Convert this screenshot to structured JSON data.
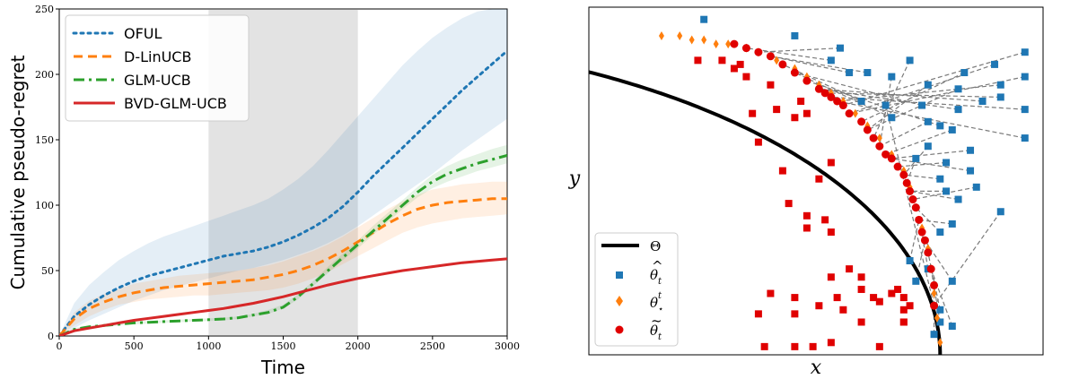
{
  "chart_data": [
    {
      "type": "line",
      "title": "",
      "xlabel": "Time",
      "ylabel": "Cumulative pseudo-regret",
      "xlim": [
        0,
        3000
      ],
      "ylim": [
        0,
        250
      ],
      "xticks": [
        "0",
        "500",
        "1000",
        "1500",
        "2000",
        "2500",
        "3000"
      ],
      "yticks": [
        "0",
        "50",
        "100",
        "150",
        "200",
        "250"
      ],
      "shaded_region": [
        1000,
        2000
      ],
      "legend_position": "top-left",
      "x": [
        0,
        100,
        200,
        300,
        400,
        500,
        600,
        700,
        800,
        900,
        1000,
        1100,
        1200,
        1300,
        1400,
        1500,
        1600,
        1700,
        1800,
        1900,
        2000,
        2100,
        2200,
        2300,
        2400,
        2500,
        2600,
        2700,
        2800,
        2900,
        3000
      ],
      "series": [
        {
          "name": "OFUL",
          "color": "#1f77b4",
          "style": "dotted",
          "values": [
            0,
            15,
            24,
            31,
            37,
            42,
            46,
            49,
            52,
            55,
            58,
            61,
            63,
            65,
            68,
            72,
            77,
            83,
            90,
            99,
            110,
            122,
            133,
            144,
            155,
            166,
            177,
            188,
            198,
            208,
            218
          ],
          "lower": [
            0,
            6,
            12,
            17,
            22,
            27,
            31,
            35,
            38,
            41,
            44,
            47,
            50,
            52,
            55,
            58,
            62,
            66,
            71,
            77,
            84,
            92,
            100,
            108,
            116,
            124,
            133,
            142,
            150,
            158,
            166
          ],
          "upper": [
            0,
            25,
            39,
            49,
            58,
            65,
            71,
            76,
            80,
            84,
            88,
            92,
            96,
            100,
            105,
            112,
            120,
            130,
            142,
            155,
            168,
            181,
            194,
            207,
            218,
            228,
            236,
            243,
            248,
            250,
            250
          ]
        },
        {
          "name": "D-LinUCB",
          "color": "#ff7f0e",
          "style": "dashed",
          "values": [
            0,
            13,
            21,
            26,
            30,
            33,
            35,
            37,
            38,
            39,
            40,
            41,
            42,
            43,
            45,
            47,
            50,
            54,
            59,
            65,
            72,
            79,
            86,
            92,
            97,
            100,
            102,
            103,
            104,
            105,
            105
          ],
          "lower": [
            0,
            8,
            15,
            20,
            24,
            26,
            28,
            29,
            30,
            31,
            31,
            32,
            33,
            34,
            35,
            37,
            40,
            44,
            49,
            55,
            61,
            67,
            73,
            79,
            83,
            86,
            88,
            90,
            91,
            92,
            93
          ],
          "upper": [
            0,
            18,
            27,
            32,
            36,
            40,
            42,
            44,
            46,
            47,
            48,
            49,
            50,
            52,
            54,
            57,
            61,
            65,
            70,
            76,
            83,
            90,
            97,
            103,
            108,
            112,
            114,
            116,
            117,
            118,
            118
          ]
        },
        {
          "name": "GLM-UCB",
          "color": "#2ca02c",
          "style": "dashdot",
          "values": [
            0,
            5,
            7,
            8,
            9,
            10,
            10.5,
            11,
            11.5,
            12,
            12.5,
            13,
            14,
            16,
            18,
            22,
            30,
            40,
            50,
            60,
            70,
            80,
            90,
            100,
            110,
            118,
            124,
            128,
            132,
            135,
            138
          ],
          "lower": [
            0,
            4,
            6,
            7,
            8,
            9,
            9.5,
            10,
            10.5,
            11,
            11.5,
            12,
            13,
            15,
            17,
            21,
            28,
            38,
            48,
            58,
            67,
            77,
            87,
            97,
            106,
            113,
            118,
            122,
            126,
            129,
            132
          ],
          "upper": [
            0,
            6,
            8,
            9,
            10,
            11,
            11.5,
            12,
            12.5,
            13,
            13.5,
            14,
            15,
            17,
            20,
            24,
            32,
            42,
            53,
            63,
            73,
            84,
            94,
            104,
            114,
            123,
            130,
            135,
            139,
            143,
            146
          ]
        },
        {
          "name": "BVD-GLM-UCB",
          "color": "#d62728",
          "style": "solid",
          "values": [
            0,
            4,
            6,
            8,
            10,
            12,
            13.5,
            15,
            16.5,
            18,
            19.5,
            21,
            23,
            25,
            27.5,
            30,
            33,
            36,
            39,
            41.5,
            44,
            46,
            48,
            50,
            51.5,
            53,
            54.5,
            56,
            57,
            58,
            59
          ],
          "lower": [
            0,
            3,
            5,
            7,
            9,
            11,
            12.5,
            14,
            15.5,
            17,
            18.5,
            20,
            22,
            24,
            26.5,
            29,
            32,
            35,
            38,
            40.5,
            43,
            45,
            47,
            49,
            50.5,
            52,
            53.5,
            55,
            56,
            57,
            58
          ],
          "upper": [
            0,
            5,
            7,
            9,
            11,
            13,
            14.5,
            16,
            17.5,
            19,
            20.5,
            22,
            24,
            26,
            28.5,
            31,
            34,
            37,
            40,
            42.5,
            45,
            47,
            49,
            51,
            52.5,
            54,
            55.5,
            57,
            58,
            59,
            60
          ]
        }
      ]
    },
    {
      "type": "scatter",
      "title": "",
      "xlabel": "x",
      "ylabel": "y",
      "xlim": [
        0.5,
        1.25
      ],
      "ylim": [
        0,
        0.85
      ],
      "ticks": "none",
      "legend_position": "bottom-left",
      "arc": {
        "name": "Θ",
        "color": "#000000",
        "center": [
          0,
          0
        ],
        "radius": 1.0,
        "theta_start_deg": 90,
        "theta_end_deg": 0
      },
      "series": [
        {
          "name": "θ̂_t",
          "marker": "square",
          "color": "#1f77b4",
          "points": [
            [
              0.69,
              0.82
            ],
            [
              0.84,
              0.78
            ],
            [
              0.9,
              0.72
            ],
            [
              0.915,
              0.75
            ],
            [
              0.93,
              0.69
            ],
            [
              0.96,
              0.69
            ],
            [
              0.95,
              0.62
            ],
            [
              1.0,
              0.58
            ],
            [
              1.05,
              0.61
            ],
            [
              1.08,
              0.56
            ],
            [
              1.11,
              0.6
            ],
            [
              1.15,
              0.62
            ],
            [
              1.18,
              0.63
            ],
            [
              1.22,
              0.6
            ],
            [
              1.22,
              0.53
            ],
            [
              1.18,
              0.66
            ],
            [
              1.22,
              0.74
            ],
            [
              1.22,
              0.68
            ],
            [
              1.17,
              0.71
            ],
            [
              1.12,
              0.69
            ],
            [
              1.11,
              0.65
            ],
            [
              1.06,
              0.66
            ],
            [
              1.03,
              0.72
            ],
            [
              1.0,
              0.68
            ],
            [
              1.06,
              0.57
            ],
            [
              1.1,
              0.55
            ],
            [
              1.13,
              0.5
            ],
            [
              1.13,
              0.45
            ],
            [
              1.09,
              0.47
            ],
            [
              1.08,
              0.43
            ],
            [
              1.06,
              0.51
            ],
            [
              1.04,
              0.48
            ],
            [
              1.09,
              0.4
            ],
            [
              1.11,
              0.38
            ],
            [
              1.14,
              0.41
            ],
            [
              1.08,
              0.3
            ],
            [
              1.1,
              0.32
            ],
            [
              1.03,
              0.23
            ],
            [
              1.06,
              0.21
            ],
            [
              1.04,
              0.18
            ],
            [
              1.1,
              0.18
            ],
            [
              1.08,
              0.11
            ],
            [
              1.08,
              0.08
            ],
            [
              1.1,
              0.07
            ],
            [
              1.07,
              0.05
            ],
            [
              1.18,
              0.35
            ],
            [
              0.99,
              0.61
            ]
          ]
        },
        {
          "name": "θ⋆^t",
          "marker": "diamond",
          "color": "#ff7f0e",
          "points": [
            [
              0.62,
              0.78
            ],
            [
              0.65,
              0.78
            ],
            [
              0.67,
              0.77
            ],
            [
              0.69,
              0.77
            ],
            [
              0.71,
              0.76
            ],
            [
              0.73,
              0.76
            ],
            [
              0.76,
              0.75
            ],
            [
              0.78,
              0.74
            ],
            [
              0.81,
              0.72
            ],
            [
              0.84,
              0.7
            ],
            [
              0.86,
              0.68
            ],
            [
              0.88,
              0.66
            ],
            [
              0.9,
              0.64
            ],
            [
              0.92,
              0.62
            ],
            [
              0.94,
              0.59
            ],
            [
              0.96,
              0.56
            ],
            [
              0.98,
              0.53
            ],
            [
              1.0,
              0.49
            ],
            [
              1.02,
              0.45
            ],
            [
              1.03,
              0.41
            ],
            [
              1.04,
              0.36
            ],
            [
              1.05,
              0.31
            ],
            [
              1.06,
              0.26
            ],
            [
              1.065,
              0.21
            ],
            [
              1.07,
              0.15
            ],
            [
              1.075,
              0.09
            ],
            [
              1.08,
              0.03
            ]
          ]
        },
        {
          "name": "θ̃_t",
          "marker": "circle",
          "color": "#e00000",
          "points": [
            [
              0.74,
              0.76
            ],
            [
              0.76,
              0.75
            ],
            [
              0.78,
              0.74
            ],
            [
              0.8,
              0.73
            ],
            [
              0.82,
              0.71
            ],
            [
              0.84,
              0.69
            ],
            [
              0.86,
              0.67
            ],
            [
              0.88,
              0.65
            ],
            [
              0.89,
              0.64
            ],
            [
              0.9,
              0.63
            ],
            [
              0.91,
              0.62
            ],
            [
              0.92,
              0.61
            ],
            [
              0.93,
              0.59
            ],
            [
              0.95,
              0.57
            ],
            [
              0.96,
              0.55
            ],
            [
              0.97,
              0.53
            ],
            [
              0.98,
              0.51
            ],
            [
              0.99,
              0.49
            ],
            [
              1.0,
              0.48
            ],
            [
              1.01,
              0.46
            ],
            [
              1.02,
              0.44
            ],
            [
              1.025,
              0.42
            ],
            [
              1.03,
              0.4
            ],
            [
              1.035,
              0.38
            ],
            [
              1.04,
              0.36
            ],
            [
              1.045,
              0.33
            ],
            [
              1.05,
              0.3
            ],
            [
              1.055,
              0.28
            ],
            [
              1.06,
              0.25
            ],
            [
              1.065,
              0.21
            ],
            [
              1.07,
              0.17
            ],
            [
              1.07,
              0.12
            ]
          ]
        },
        {
          "name": "θ̃_t (scattered)",
          "marker": "square",
          "color": "#e00000",
          "points": [
            [
              0.68,
              0.72
            ],
            [
              0.72,
              0.72
            ],
            [
              0.74,
              0.7
            ],
            [
              0.75,
              0.71
            ],
            [
              0.76,
              0.68
            ],
            [
              0.8,
              0.66
            ],
            [
              0.77,
              0.59
            ],
            [
              0.81,
              0.6
            ],
            [
              0.85,
              0.62
            ],
            [
              0.84,
              0.58
            ],
            [
              0.86,
              0.59
            ],
            [
              0.78,
              0.52
            ],
            [
              0.82,
              0.45
            ],
            [
              0.88,
              0.43
            ],
            [
              0.9,
              0.47
            ],
            [
              0.8,
              0.15
            ],
            [
              0.84,
              0.14
            ],
            [
              0.84,
              0.1
            ],
            [
              0.78,
              0.1
            ],
            [
              0.88,
              0.12
            ],
            [
              0.91,
              0.14
            ],
            [
              0.9,
              0.19
            ],
            [
              0.93,
              0.21
            ],
            [
              0.95,
              0.19
            ],
            [
              1.01,
              0.16
            ],
            [
              1.02,
              0.14
            ],
            [
              1.0,
              0.15
            ],
            [
              0.95,
              0.08
            ],
            [
              1.02,
              0.08
            ],
            [
              1.02,
              0.08
            ],
            [
              0.9,
              0.03
            ],
            [
              0.84,
              0.02
            ],
            [
              0.87,
              0.02
            ],
            [
              0.79,
              0.02
            ],
            [
              0.98,
              0.02
            ],
            [
              0.92,
              0.11
            ],
            [
              0.95,
              0.16
            ],
            [
              0.97,
              0.14
            ],
            [
              0.98,
              0.13
            ],
            [
              1.03,
              0.12
            ],
            [
              1.02,
              0.11
            ],
            [
              0.86,
              0.31
            ],
            [
              0.89,
              0.33
            ],
            [
              0.9,
              0.3
            ],
            [
              0.86,
              0.34
            ],
            [
              0.83,
              0.37
            ]
          ]
        }
      ],
      "legend": {
        "theta_label": "Θ",
        "hat_label": "θ",
        "hat_sub": "t",
        "star_label": "θ",
        "star_sup": "t",
        "star_sub": "⋆",
        "tilde_label": "θ",
        "tilde_sub": "t"
      }
    }
  ]
}
